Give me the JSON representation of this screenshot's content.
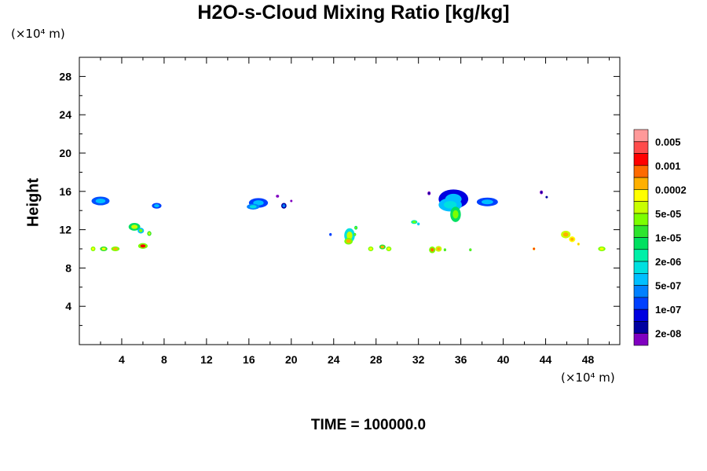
{
  "title": "H2O-s-Cloud Mixing Ratio [kg/kg]",
  "time_label": "TIME = 100000.0",
  "chart_data": {
    "type": "heatmap",
    "title": "H2O-s-Cloud Mixing Ratio [kg/kg]",
    "xlabel": "",
    "ylabel": "Height",
    "x_unit_label": "(×10⁴ m)",
    "y_unit_label": "(×10⁴ m)",
    "xlim": [
      0,
      51
    ],
    "ylim": [
      0,
      30
    ],
    "x_ticks": [
      4,
      8,
      12,
      16,
      20,
      24,
      28,
      32,
      36,
      40,
      44,
      48
    ],
    "y_ticks": [
      4,
      8,
      12,
      16,
      20,
      24,
      28
    ],
    "colorbar": {
      "labels": [
        "0.005",
        "0.001",
        "0.0002",
        "5e-05",
        "1e-05",
        "2e-06",
        "5e-07",
        "1e-07",
        "2e-08"
      ],
      "colors": [
        "#FF9999",
        "#FF4B4B",
        "#FF0000",
        "#FF6A00",
        "#FFB000",
        "#FFFF00",
        "#C8FF00",
        "#7CFF00",
        "#2EE52E",
        "#00E060",
        "#00F0A8",
        "#00E0E0",
        "#00BFFF",
        "#0080FF",
        "#0040FF",
        "#0000E0",
        "#0000A0",
        "#8000C0"
      ]
    },
    "cloud_patches": [
      {
        "x": 2.0,
        "y": 15.0,
        "rx": 0.85,
        "ry": 0.45,
        "color": "#0050FF",
        "core": "#00BFFF"
      },
      {
        "x": 7.3,
        "y": 14.5,
        "rx": 0.45,
        "ry": 0.3,
        "color": "#0040FF",
        "core": "#00BFFF"
      },
      {
        "x": 16.9,
        "y": 14.8,
        "rx": 0.9,
        "ry": 0.5,
        "color": "#0040FF",
        "core": "#00BFFF"
      },
      {
        "x": 16.4,
        "y": 14.4,
        "rx": 0.6,
        "ry": 0.3,
        "color": "#0080FF",
        "core": "#00E0E0"
      },
      {
        "x": 18.7,
        "y": 15.5,
        "rx": 0.15,
        "ry": 0.15,
        "color": "#8000C0",
        "core": "#8000C0"
      },
      {
        "x": 19.3,
        "y": 14.5,
        "rx": 0.25,
        "ry": 0.3,
        "color": "#0000A0",
        "core": "#0080FF"
      },
      {
        "x": 20.0,
        "y": 15.0,
        "rx": 0.08,
        "ry": 0.1,
        "color": "#8000C0",
        "core": "#8000C0"
      },
      {
        "x": 5.2,
        "y": 12.3,
        "rx": 0.55,
        "ry": 0.4,
        "color": "#00E060",
        "core": "#C8FF00"
      },
      {
        "x": 5.8,
        "y": 11.9,
        "rx": 0.3,
        "ry": 0.3,
        "color": "#00BFFF",
        "core": "#7CFF00"
      },
      {
        "x": 6.6,
        "y": 11.6,
        "rx": 0.2,
        "ry": 0.25,
        "color": "#2EE52E",
        "core": "#C8FF00"
      },
      {
        "x": 1.3,
        "y": 10.0,
        "rx": 0.22,
        "ry": 0.25,
        "color": "#7CFF00",
        "core": "#FFFF00"
      },
      {
        "x": 2.3,
        "y": 10.0,
        "rx": 0.35,
        "ry": 0.25,
        "color": "#2EE52E",
        "core": "#FFFF00"
      },
      {
        "x": 3.4,
        "y": 10.0,
        "rx": 0.4,
        "ry": 0.25,
        "color": "#7CFF00",
        "core": "#FFB000"
      },
      {
        "x": 6.0,
        "y": 10.3,
        "rx": 0.45,
        "ry": 0.3,
        "color": "#7CFF00",
        "core": "#FF0000"
      },
      {
        "x": 23.7,
        "y": 11.5,
        "rx": 0.12,
        "ry": 0.15,
        "color": "#0040FF",
        "core": "#0040FF"
      },
      {
        "x": 25.5,
        "y": 11.4,
        "rx": 0.5,
        "ry": 0.75,
        "color": "#00E0E0",
        "core": "#C8FF00"
      },
      {
        "x": 25.4,
        "y": 10.8,
        "rx": 0.4,
        "ry": 0.35,
        "color": "#7CFF00",
        "core": "#FFB000"
      },
      {
        "x": 26.1,
        "y": 12.2,
        "rx": 0.15,
        "ry": 0.2,
        "color": "#00E060",
        "core": "#7CFF00"
      },
      {
        "x": 26.0,
        "y": 11.5,
        "rx": 0.12,
        "ry": 0.15,
        "color": "#2EE52E",
        "core": "#7CFF00"
      },
      {
        "x": 27.5,
        "y": 10.0,
        "rx": 0.25,
        "ry": 0.25,
        "color": "#7CFF00",
        "core": "#FFFF00"
      },
      {
        "x": 28.6,
        "y": 10.2,
        "rx": 0.3,
        "ry": 0.25,
        "color": "#2EE52E",
        "core": "#FFB000"
      },
      {
        "x": 29.2,
        "y": 10.0,
        "rx": 0.25,
        "ry": 0.25,
        "color": "#7CFF00",
        "core": "#FFFF00"
      },
      {
        "x": 31.6,
        "y": 12.8,
        "rx": 0.3,
        "ry": 0.2,
        "color": "#00F0A8",
        "core": "#7CFF00"
      },
      {
        "x": 32.0,
        "y": 12.6,
        "rx": 0.12,
        "ry": 0.15,
        "color": "#00BFFF",
        "core": "#00E0E0"
      },
      {
        "x": 33.3,
        "y": 9.9,
        "rx": 0.3,
        "ry": 0.35,
        "color": "#7CFF00",
        "core": "#FF6A00"
      },
      {
        "x": 33.9,
        "y": 10.0,
        "rx": 0.3,
        "ry": 0.3,
        "color": "#C8FF00",
        "core": "#FFB000"
      },
      {
        "x": 34.5,
        "y": 9.9,
        "rx": 0.12,
        "ry": 0.15,
        "color": "#2EE52E",
        "core": "#7CFF00"
      },
      {
        "x": 36.9,
        "y": 9.9,
        "rx": 0.12,
        "ry": 0.15,
        "color": "#2EE52E",
        "core": "#7CFF00"
      },
      {
        "x": 33.0,
        "y": 15.8,
        "rx": 0.15,
        "ry": 0.2,
        "color": "#8000C0",
        "core": "#0000A0"
      },
      {
        "x": 35.3,
        "y": 15.2,
        "rx": 1.4,
        "ry": 1.0,
        "color": "#0000E0",
        "core": "#00BFFF"
      },
      {
        "x": 35.0,
        "y": 14.6,
        "rx": 1.1,
        "ry": 0.7,
        "color": "#00BFFF",
        "core": "#00E0E0"
      },
      {
        "x": 35.5,
        "y": 13.6,
        "rx": 0.5,
        "ry": 0.8,
        "color": "#00E060",
        "core": "#7CFF00"
      },
      {
        "x": 38.5,
        "y": 14.9,
        "rx": 1.0,
        "ry": 0.45,
        "color": "#0040FF",
        "core": "#00BFFF"
      },
      {
        "x": 43.6,
        "y": 15.9,
        "rx": 0.15,
        "ry": 0.2,
        "color": "#8000C0",
        "core": "#0000A0"
      },
      {
        "x": 44.1,
        "y": 15.4,
        "rx": 0.08,
        "ry": 0.1,
        "color": "#0000A0",
        "core": "#0000A0"
      },
      {
        "x": 42.9,
        "y": 10.0,
        "rx": 0.12,
        "ry": 0.15,
        "color": "#FFB000",
        "core": "#FF0000"
      },
      {
        "x": 45.9,
        "y": 11.5,
        "rx": 0.45,
        "ry": 0.4,
        "color": "#C8FF00",
        "core": "#FFB000"
      },
      {
        "x": 46.5,
        "y": 11.0,
        "rx": 0.3,
        "ry": 0.3,
        "color": "#FFFF00",
        "core": "#FFB000"
      },
      {
        "x": 47.1,
        "y": 10.5,
        "rx": 0.12,
        "ry": 0.15,
        "color": "#FFFF00",
        "core": "#FFB000"
      },
      {
        "x": 49.3,
        "y": 10.0,
        "rx": 0.35,
        "ry": 0.25,
        "color": "#7CFF00",
        "core": "#FFFF00"
      }
    ]
  }
}
